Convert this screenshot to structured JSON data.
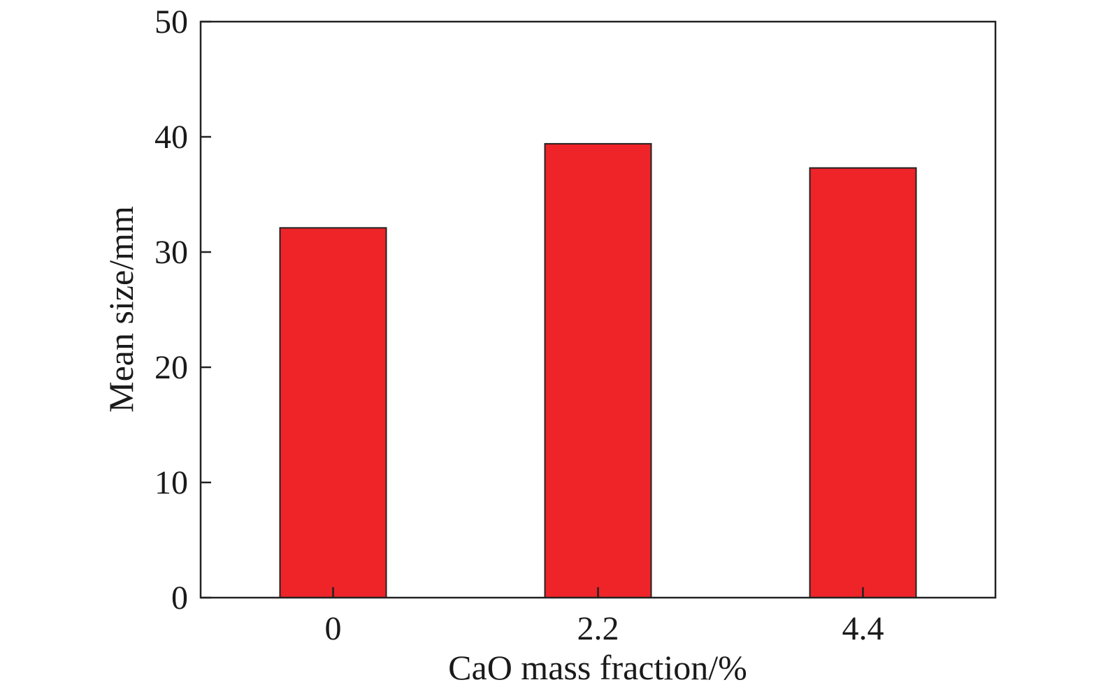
{
  "chart_data": {
    "type": "bar",
    "categories": [
      "0",
      "2.2",
      "4.4"
    ],
    "values": [
      32.1,
      39.4,
      37.3
    ],
    "xlabel": "CaO mass fraction/%",
    "ylabel": "Mean size/mm",
    "ylim": [
      0,
      50
    ],
    "yticks": [
      "0",
      "10",
      "20",
      "30",
      "40",
      "50"
    ],
    "bar_color": "#ee2429",
    "grid": false,
    "legend": "none"
  }
}
